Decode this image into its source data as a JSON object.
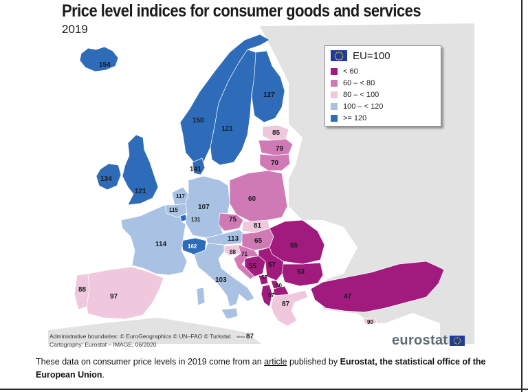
{
  "map": {
    "title": "Price level indices for consumer goods and services",
    "year": "2019",
    "legend": {
      "title": "EU=100",
      "classes": [
        {
          "label": "< 60",
          "color": "#a11a7d"
        },
        {
          "label": "60 – < 80",
          "color": "#d07ab5"
        },
        {
          "label": "80 – < 100",
          "color": "#efc8dd"
        },
        {
          "label": "100 – < 120",
          "color": "#a9c2e4"
        },
        {
          "label": ">= 120",
          "color": "#2e6bb9"
        }
      ]
    },
    "values": {
      "iceland": "154",
      "norway": "150",
      "sweden": "121",
      "finland": "127",
      "estonia": "85",
      "latvia": "79",
      "lithuania": "70",
      "ireland": "134",
      "uk": "121",
      "denmark": "141",
      "netherlands": "117",
      "belgium": "115",
      "luxembourg": "131",
      "germany": "107",
      "poland": "60",
      "czechia": "75",
      "slovakia": "81",
      "austria": "113",
      "hungary": "65",
      "romania": "55",
      "switzerland": "162",
      "france": "114",
      "slovenia": "88",
      "croatia": "71",
      "bosnia": "55",
      "serbia": "57",
      "montenegro": "57",
      "kosovo": "50",
      "north_macedonia": "57",
      "bulgaria": "53",
      "albania": "57",
      "greece": "87",
      "turkey": "47",
      "cyprus": "90",
      "italy": "103",
      "malta": "87",
      "portugal": "88",
      "spain": "97"
    },
    "credits": [
      "Administrative boundaries: © EuroGeographics © UN–FAO © Turkstat",
      "Cartography: Eurostat – IMAGE, 06/2020"
    ],
    "logo": "eurostat"
  },
  "caption": {
    "part1": "These data on consumer price levels in 2019 come from an ",
    "link": "article",
    "part2": " published by ",
    "bold": "Eurostat, the statistical office of the European Union",
    "part3": "."
  },
  "colors": {
    "sea": "#ffffff",
    "non_covered": "#e2e2e2",
    "border": "#ffffff"
  }
}
